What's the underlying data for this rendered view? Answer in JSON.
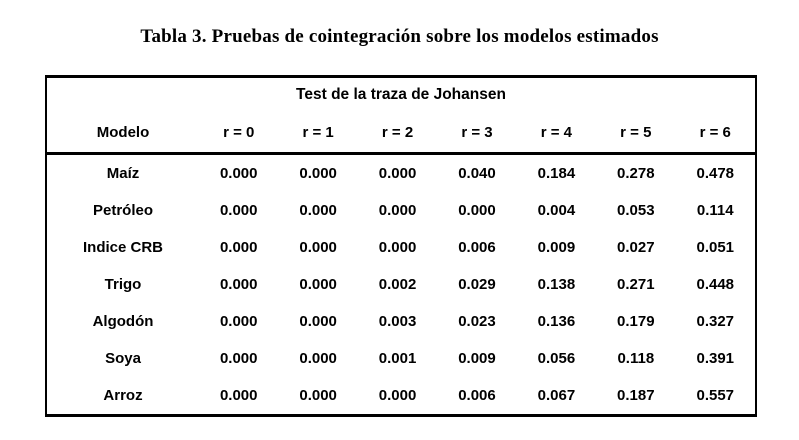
{
  "title": "Tabla 3. Pruebas de cointegración sobre los modelos estimados",
  "table": {
    "header": "Test de la traza de Johansen",
    "columns": [
      "Modelo",
      "r = 0",
      "r = 1",
      "r = 2",
      "r = 3",
      "r = 4",
      "r = 5",
      "r = 6"
    ],
    "rows": [
      {
        "model": "Maíz",
        "values": [
          "0.000",
          "0.000",
          "0.000",
          "0.040",
          "0.184",
          "0.278",
          "0.478"
        ]
      },
      {
        "model": "Petróleo",
        "values": [
          "0.000",
          "0.000",
          "0.000",
          "0.000",
          "0.004",
          "0.053",
          "0.114"
        ]
      },
      {
        "model": "Indice CRB",
        "values": [
          "0.000",
          "0.000",
          "0.000",
          "0.006",
          "0.009",
          "0.027",
          "0.051"
        ]
      },
      {
        "model": "Trigo",
        "values": [
          "0.000",
          "0.000",
          "0.002",
          "0.029",
          "0.138",
          "0.271",
          "0.448"
        ]
      },
      {
        "model": "Algodón",
        "values": [
          "0.000",
          "0.000",
          "0.003",
          "0.023",
          "0.136",
          "0.179",
          "0.327"
        ]
      },
      {
        "model": "Soya",
        "values": [
          "0.000",
          "0.000",
          "0.001",
          "0.009",
          "0.056",
          "0.118",
          "0.391"
        ]
      },
      {
        "model": "Arroz",
        "values": [
          "0.000",
          "0.000",
          "0.000",
          "0.006",
          "0.067",
          "0.187",
          "0.557"
        ]
      }
    ]
  },
  "colors": {
    "text": "#000000",
    "border": "#000000",
    "background": "#ffffff"
  }
}
